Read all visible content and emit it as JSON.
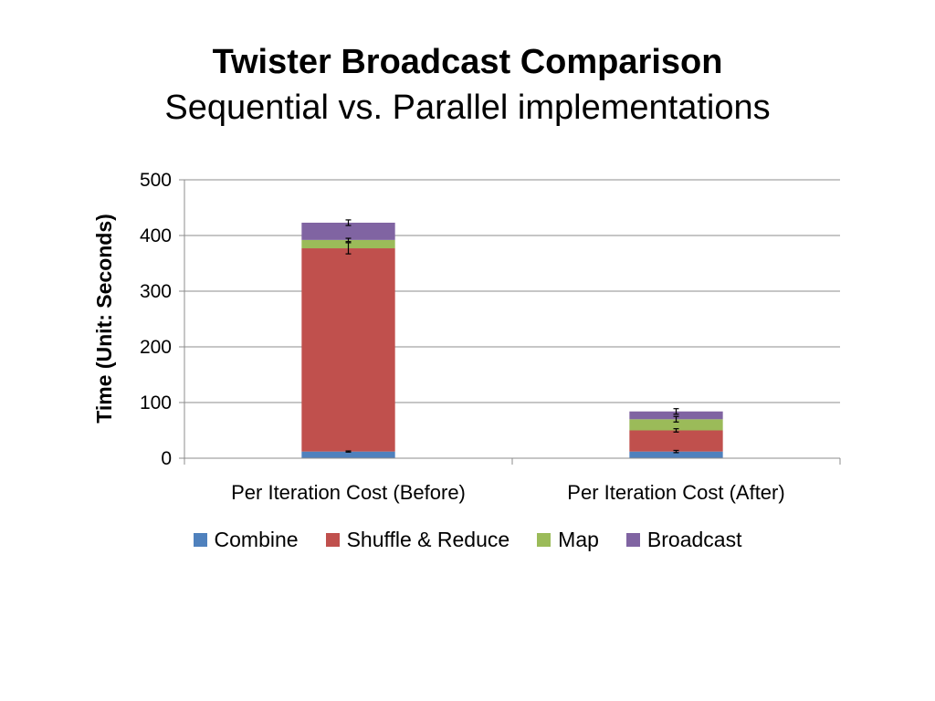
{
  "title": "Twister Broadcast Comparison",
  "subtitle": "Sequential vs. Parallel implementations",
  "chart_data": {
    "type": "bar",
    "stacked": true,
    "categories": [
      "Per Iteration Cost (Before)",
      "Per Iteration Cost (After)"
    ],
    "ylabel": "Time (Unit: Seconds)",
    "xlabel": "",
    "ylim": [
      0,
      500
    ],
    "yticks": [
      "0",
      "100",
      "200",
      "300",
      "400",
      "500"
    ],
    "grid": true,
    "legend_position": "bottom",
    "series": [
      {
        "name": "Combine",
        "color": "#4F81BD",
        "values": [
          12,
          12
        ],
        "errors": [
          1,
          2
        ]
      },
      {
        "name": "Shuffle & Reduce",
        "color": "#C0504D",
        "values": [
          365,
          38
        ],
        "errors": [
          10,
          3
        ]
      },
      {
        "name": "Map",
        "color": "#9BBB59",
        "values": [
          15,
          20
        ],
        "errors": [
          3,
          5
        ]
      },
      {
        "name": "Broadcast",
        "color": "#8064A2",
        "values": [
          31,
          14
        ],
        "errors": [
          5,
          5
        ]
      }
    ]
  }
}
